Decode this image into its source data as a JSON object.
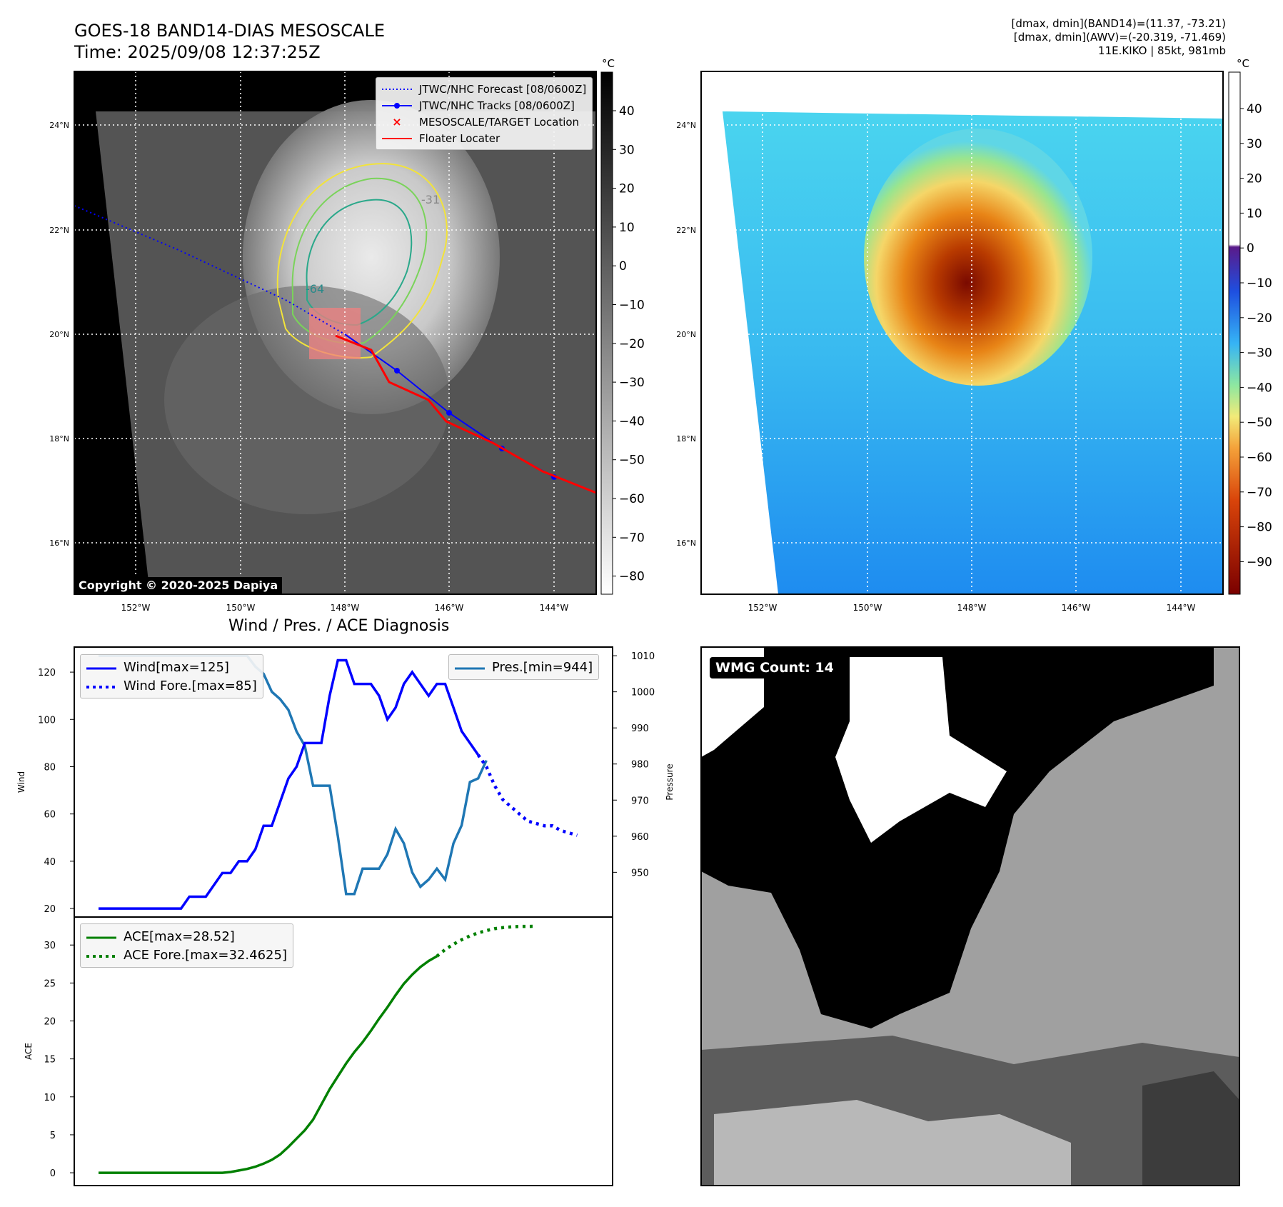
{
  "header": {
    "title_line1": "GOES-18 BAND14-DIAS MESOSCALE",
    "title_line2": "Time: 2025/09/08 12:37:25Z",
    "stat_line1": "[dmax, dmin](BAND14)=(11.37, -73.21)",
    "stat_line2": "[dmax, dmin](AWV)=(-20.319, -71.469)",
    "stat_line3": "11E.KIKO | 85kt, 981mb"
  },
  "map_left": {
    "lat_labels": [
      "24°N",
      "22°N",
      "20°N",
      "18°N",
      "16°N"
    ],
    "lon_labels": [
      "152°W",
      "150°W",
      "148°W",
      "146°W",
      "144°W"
    ],
    "contour_labels": [
      "-31",
      "-64"
    ],
    "copyright": "Copyright © 2020-2025 Dapiya",
    "legend": [
      {
        "label": "JTWC/NHC Forecast [08/0600Z]",
        "color": "#0000ff",
        "style": "dotted"
      },
      {
        "label": "JTWC/NHC Tracks [08/0600Z]",
        "color": "#0000ff",
        "style": "line-marker"
      },
      {
        "label": "MESOSCALE/TARGET Location",
        "color": "#ff0000",
        "style": "x"
      },
      {
        "label": "Floater Locater",
        "color": "#ff0000",
        "style": "line"
      }
    ],
    "colorbar": {
      "unit": "°C",
      "ticks": [
        "40",
        "30",
        "20",
        "10",
        "0",
        "−10",
        "−20",
        "−30",
        "−40",
        "−50",
        "−60",
        "−70",
        "−80"
      ]
    }
  },
  "map_right": {
    "lat_labels": [
      "24°N",
      "22°N",
      "20°N",
      "18°N",
      "16°N"
    ],
    "lon_labels": [
      "152°W",
      "150°W",
      "148°W",
      "146°W",
      "144°W"
    ],
    "colorbar": {
      "unit": "°C",
      "ticks": [
        "40",
        "30",
        "20",
        "10",
        "0",
        "−10",
        "−20",
        "−30",
        "−40",
        "−50",
        "−60",
        "−70",
        "−80",
        "−90"
      ]
    }
  },
  "wmg": {
    "badge": "WMG Count: 14"
  },
  "diagnosis": {
    "title": "Wind / Pres. / ACE Diagnosis",
    "wind_ylabel": "Wind",
    "pres_ylabel": "Pressure",
    "ace_ylabel": "ACE",
    "wind_legend": [
      "Wind[max=125]",
      "Wind Fore.[max=85]"
    ],
    "pres_legend": "Pres.[min=944]",
    "ace_legend": [
      "ACE[max=28.52]",
      "ACE Fore.[max=32.4625]"
    ]
  },
  "colors": {
    "wind": "#0000ff",
    "pressure": "#1f77b4",
    "ace": "#008000",
    "track": "#ff0000"
  },
  "chart_data": [
    {
      "type": "line",
      "title": "Wind / Pres. / ACE Diagnosis",
      "ylabel": "Wind",
      "ylim": [
        17,
        130
      ],
      "yticks": [
        20,
        40,
        60,
        80,
        100,
        120
      ],
      "series": [
        {
          "name": "Wind[max=125]",
          "values": [
            20,
            20,
            20,
            20,
            20,
            20,
            20,
            20,
            20,
            20,
            20,
            25,
            25,
            25,
            30,
            35,
            35,
            40,
            40,
            45,
            55,
            55,
            65,
            75,
            80,
            90,
            90,
            90,
            110,
            125,
            125,
            115,
            115,
            115,
            110,
            100,
            105,
            115,
            120,
            115,
            110,
            115,
            115,
            105,
            95,
            90,
            85
          ]
        },
        {
          "name": "Wind Fore.[max=85]",
          "x_start": 46,
          "values": [
            85,
            80,
            72,
            66,
            63,
            60,
            57,
            56,
            55,
            55,
            53,
            52,
            51
          ]
        }
      ]
    },
    {
      "type": "line",
      "ylabel": "Pressure",
      "ylim": [
        938,
        1012
      ],
      "yticks": [
        950,
        960,
        970,
        980,
        990,
        1000,
        1010
      ],
      "series": [
        {
          "name": "Pres.[min=944]",
          "values": [
            1010,
            1010,
            1010,
            1010,
            1010,
            1010,
            1010,
            1010,
            1010,
            1010,
            1010,
            1010,
            1010,
            1010,
            1010,
            1010,
            1010,
            1010,
            1010,
            1007,
            1005,
            1000,
            998,
            995,
            989,
            985,
            974,
            974,
            974,
            960,
            944,
            944,
            951,
            951,
            951,
            955,
            962,
            958,
            950,
            946,
            948,
            951,
            948,
            958,
            963,
            975,
            976,
            981
          ]
        }
      ]
    },
    {
      "type": "line",
      "ylabel": "ACE",
      "ylim": [
        -1.5,
        33.5
      ],
      "yticks": [
        0,
        5,
        10,
        15,
        20,
        25,
        30
      ],
      "series": [
        {
          "name": "ACE[max=28.52]",
          "values": [
            0,
            0,
            0,
            0,
            0,
            0,
            0,
            0,
            0,
            0,
            0,
            0,
            0,
            0,
            0,
            0,
            0.1,
            0.3,
            0.5,
            0.8,
            1.2,
            1.7,
            2.4,
            3.4,
            4.5,
            5.6,
            7,
            9,
            11,
            12.7,
            14.4,
            15.9,
            17.2,
            18.7,
            20.3,
            21.8,
            23.4,
            24.9,
            26.1,
            27.1,
            27.9,
            28.52
          ]
        },
        {
          "name": "ACE Fore.[max=32.4625]",
          "x_start": 41,
          "values": [
            28.52,
            29.4,
            30.1,
            30.7,
            31.2,
            31.6,
            31.9,
            32.15,
            32.3,
            32.4,
            32.45,
            32.46,
            32.4625
          ]
        }
      ]
    }
  ]
}
